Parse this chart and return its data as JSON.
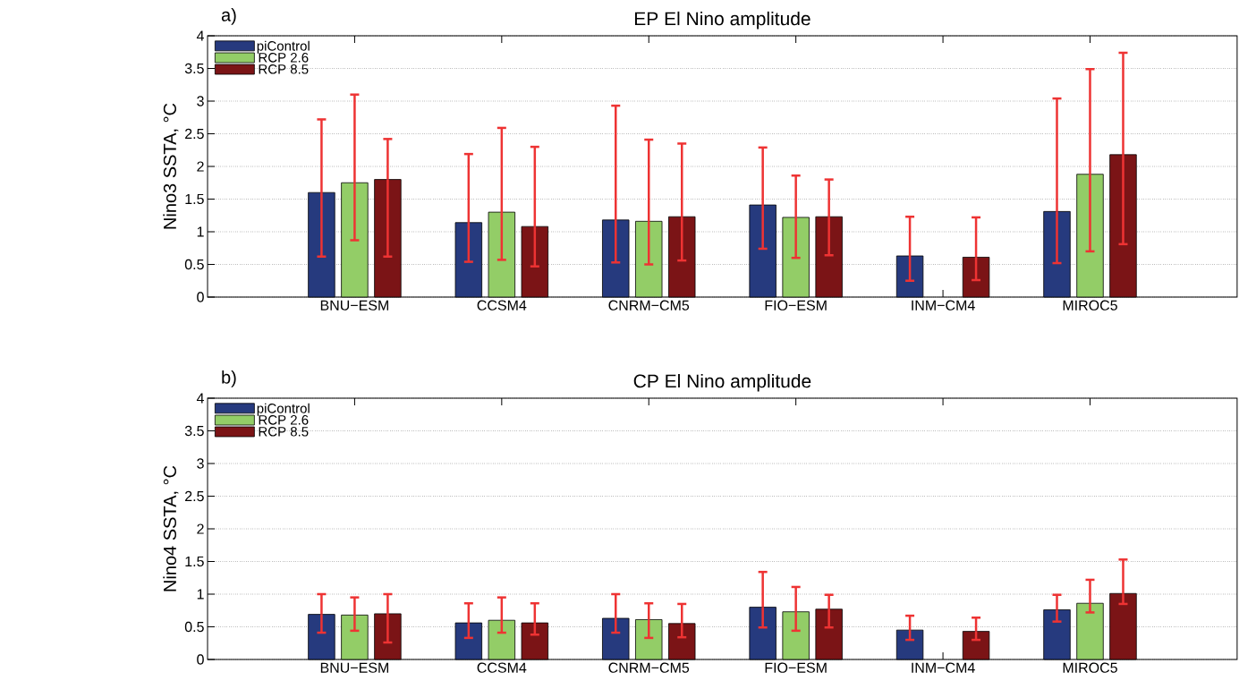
{
  "chart_data": [
    {
      "type": "bar",
      "title": "EP El Nino amplitude",
      "ylabel": "Nino3 SSTA, °C",
      "annotations": [
        "a)"
      ],
      "categories": [
        "BNU−ESM",
        "CCSM4",
        "CNRM−CM5",
        "FIO−ESM",
        "INM−CM4",
        "MIROC5"
      ],
      "series": [
        {
          "name": "piControl",
          "color": "#263a7e",
          "values": [
            1.6,
            1.14,
            1.18,
            1.41,
            0.63,
            1.31
          ],
          "errors": [
            [
              0.62,
              2.72
            ],
            [
              0.54,
              2.19
            ],
            [
              0.53,
              2.93
            ],
            [
              0.74,
              2.29
            ],
            [
              0.25,
              1.23
            ],
            [
              0.52,
              3.04
            ]
          ]
        },
        {
          "name": "RCP 2.6",
          "color": "#93cd67",
          "values": [
            1.75,
            1.3,
            1.16,
            1.22,
            null,
            1.88
          ],
          "errors": [
            [
              0.87,
              3.1
            ],
            [
              0.57,
              2.59
            ],
            [
              0.5,
              2.41
            ],
            [
              0.6,
              1.86
            ],
            null,
            [
              0.7,
              3.49
            ]
          ]
        },
        {
          "name": "RCP 8.5",
          "color": "#7b1416",
          "values": [
            1.8,
            1.08,
            1.23,
            1.23,
            0.61,
            2.18
          ],
          "errors": [
            [
              0.62,
              2.42
            ],
            [
              0.47,
              2.3
            ],
            [
              0.56,
              2.35
            ],
            [
              0.64,
              1.8
            ],
            [
              0.26,
              1.22
            ],
            [
              0.81,
              3.74
            ]
          ]
        }
      ],
      "ylim": [
        0,
        4
      ],
      "yticks": [
        0,
        0.5,
        1,
        1.5,
        2,
        2.5,
        3,
        3.5,
        4
      ],
      "grid": "y",
      "legend": "top left"
    },
    {
      "type": "bar",
      "title": "CP El Nino amplitude",
      "ylabel": "Nino4 SSTA, °C",
      "annotations": [
        "b)"
      ],
      "categories": [
        "BNU−ESM",
        "CCSM4",
        "CNRM−CM5",
        "FIO−ESM",
        "INM−CM4",
        "MIROC5"
      ],
      "series": [
        {
          "name": "piControl",
          "color": "#263a7e",
          "values": [
            0.69,
            0.56,
            0.63,
            0.8,
            0.45,
            0.76
          ],
          "errors": [
            [
              0.41,
              1.0
            ],
            [
              0.33,
              0.86
            ],
            [
              0.41,
              1.0
            ],
            [
              0.49,
              1.34
            ],
            [
              0.3,
              0.67
            ],
            [
              0.58,
              0.99
            ]
          ]
        },
        {
          "name": "RCP 2.6",
          "color": "#93cd67",
          "values": [
            0.68,
            0.6,
            0.61,
            0.73,
            null,
            0.86
          ],
          "errors": [
            [
              0.44,
              0.95
            ],
            [
              0.41,
              0.95
            ],
            [
              0.33,
              0.86
            ],
            [
              0.44,
              1.11
            ],
            null,
            [
              0.72,
              1.22
            ]
          ]
        },
        {
          "name": "RCP 8.5",
          "color": "#7b1416",
          "values": [
            0.7,
            0.56,
            0.55,
            0.77,
            0.43,
            1.01
          ],
          "errors": [
            [
              0.26,
              1.0
            ],
            [
              0.38,
              0.86
            ],
            [
              0.34,
              0.85
            ],
            [
              0.49,
              0.99
            ],
            [
              0.3,
              0.64
            ],
            [
              0.85,
              1.53
            ]
          ]
        }
      ],
      "ylim": [
        0,
        4
      ],
      "yticks": [
        0,
        0.5,
        1,
        1.5,
        2,
        2.5,
        3,
        3.5,
        4
      ],
      "grid": "y",
      "legend": "top left"
    }
  ]
}
